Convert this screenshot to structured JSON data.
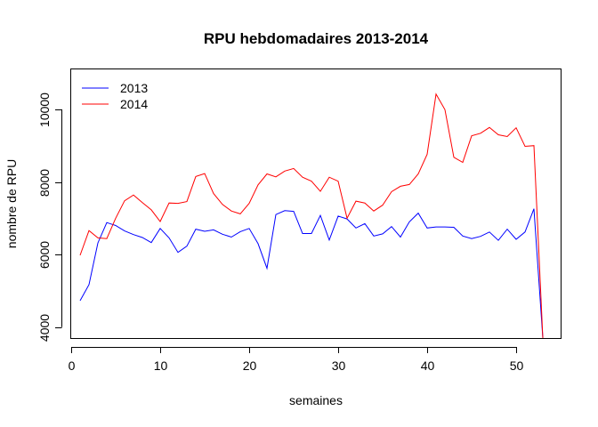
{
  "chart_data": {
    "type": "line",
    "title": "RPU hebdomadaires 2013-2014",
    "xlabel": "semaines",
    "ylabel": "nombre de RPU",
    "xlim": [
      0,
      55
    ],
    "ylim": [
      3700,
      11100
    ],
    "xticks": [
      0,
      10,
      20,
      30,
      40,
      50
    ],
    "yticks": [
      4000,
      6000,
      8000,
      10000
    ],
    "grid": false,
    "legend_position": "top-left",
    "x": [
      1,
      2,
      3,
      4,
      5,
      6,
      7,
      8,
      9,
      10,
      11,
      12,
      13,
      14,
      15,
      16,
      17,
      18,
      19,
      20,
      21,
      22,
      23,
      24,
      25,
      26,
      27,
      28,
      29,
      30,
      31,
      32,
      33,
      34,
      35,
      36,
      37,
      38,
      39,
      40,
      41,
      42,
      43,
      44,
      45,
      46,
      47,
      48,
      49,
      50,
      51,
      52,
      53
    ],
    "series": [
      {
        "name": "2013",
        "color": "#0000ff",
        "values": [
          4730,
          5170,
          6320,
          6880,
          6800,
          6650,
          6550,
          6470,
          6330,
          6720,
          6460,
          6060,
          6230,
          6700,
          6640,
          6680,
          6560,
          6480,
          6630,
          6720,
          6300,
          5620,
          7100,
          7210,
          7190,
          6580,
          6580,
          7080,
          6400,
          7060,
          6980,
          6730,
          6850,
          6510,
          6570,
          6770,
          6480,
          6900,
          7140,
          6730,
          6760,
          6760,
          6750,
          6510,
          6440,
          6500,
          6620,
          6390,
          6700,
          6420,
          6620,
          7260,
          3700
        ]
      },
      {
        "name": "2014",
        "color": "#ff0000",
        "values": [
          5980,
          6660,
          6460,
          6440,
          7000,
          7480,
          7640,
          7430,
          7230,
          6910,
          7420,
          7410,
          7460,
          8150,
          8230,
          7680,
          7380,
          7200,
          7120,
          7410,
          7920,
          8220,
          8140,
          8300,
          8370,
          8130,
          8020,
          7740,
          8130,
          8020,
          7000,
          7470,
          7420,
          7200,
          7360,
          7730,
          7880,
          7930,
          8220,
          8760,
          10420,
          9990,
          8680,
          8540,
          9270,
          9340,
          9500,
          9300,
          9250,
          9490,
          8980,
          9000,
          3700
        ]
      }
    ]
  }
}
